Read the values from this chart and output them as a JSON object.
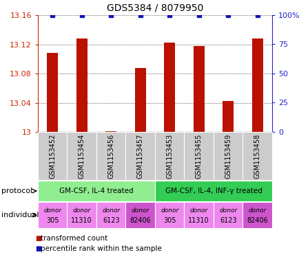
{
  "title": "GDS5384 / 8079950",
  "samples": [
    "GSM1153452",
    "GSM1153454",
    "GSM1153456",
    "GSM1153457",
    "GSM1153453",
    "GSM1153455",
    "GSM1153459",
    "GSM1153458"
  ],
  "red_values": [
    13.108,
    13.128,
    13.001,
    13.088,
    13.122,
    13.118,
    13.042,
    13.128
  ],
  "blue_values": [
    100,
    100,
    100,
    100,
    100,
    100,
    100,
    100
  ],
  "ylim_left": [
    13.0,
    13.16
  ],
  "ylim_right": [
    0,
    100
  ],
  "yticks_left": [
    13.0,
    13.04,
    13.08,
    13.12,
    13.16
  ],
  "yticks_right": [
    0,
    25,
    50,
    75,
    100
  ],
  "ytick_labels_left": [
    "13",
    "13.04",
    "13.08",
    "13.12",
    "13.16"
  ],
  "ytick_labels_right": [
    "0",
    "25",
    "50",
    "75",
    "100%"
  ],
  "protocols": [
    {
      "label": "GM-CSF, IL-4 treated",
      "start": 0,
      "end": 4,
      "color": "#90EE90"
    },
    {
      "label": "GM-CSF, IL-4, INF-γ treated",
      "start": 4,
      "end": 8,
      "color": "#33CC55"
    }
  ],
  "individuals": [
    {
      "label": "donor\n305",
      "index": 0,
      "color": "#EE88EE"
    },
    {
      "label": "donor\n11310",
      "index": 1,
      "color": "#EE88EE"
    },
    {
      "label": "donor\n6123",
      "index": 2,
      "color": "#EE88EE"
    },
    {
      "label": "donor\n82406",
      "index": 3,
      "color": "#CC55CC"
    },
    {
      "label": "donor\n305",
      "index": 4,
      "color": "#EE88EE"
    },
    {
      "label": "donor\n11310",
      "index": 5,
      "color": "#EE88EE"
    },
    {
      "label": "donor\n6123",
      "index": 6,
      "color": "#EE88EE"
    },
    {
      "label": "donor\n82406",
      "index": 7,
      "color": "#CC55CC"
    }
  ],
  "bar_color": "#BB1100",
  "dot_color": "#1111BB",
  "left_axis_color": "#CC2200",
  "right_axis_color": "#2222CC",
  "sample_box_color": "#CCCCCC",
  "legend_items": [
    {
      "color": "#BB1100",
      "label": "transformed count"
    },
    {
      "color": "#1111BB",
      "label": "percentile rank within the sample"
    }
  ],
  "figsize": [
    4.35,
    3.93
  ],
  "dpi": 100
}
